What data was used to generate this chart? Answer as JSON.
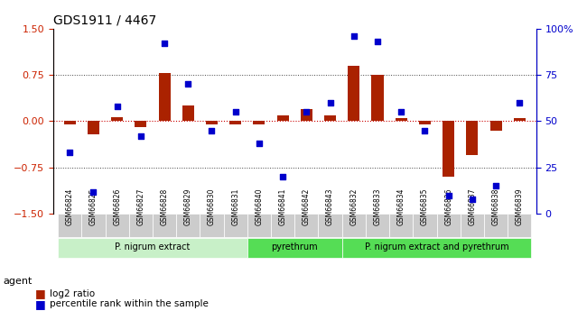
{
  "title": "GDS1911 / 4467",
  "samples": [
    "GSM66824",
    "GSM66825",
    "GSM66826",
    "GSM66827",
    "GSM66828",
    "GSM66829",
    "GSM66830",
    "GSM66831",
    "GSM66840",
    "GSM66841",
    "GSM66842",
    "GSM66843",
    "GSM66832",
    "GSM66833",
    "GSM66834",
    "GSM66835",
    "GSM66836",
    "GSM66837",
    "GSM66838",
    "GSM66839"
  ],
  "log2_ratio": [
    -0.05,
    -0.22,
    0.07,
    -0.1,
    0.78,
    0.25,
    -0.05,
    -0.05,
    -0.05,
    0.1,
    0.2,
    0.1,
    0.9,
    0.75,
    0.05,
    -0.05,
    -0.9,
    -0.55,
    -0.15,
    0.05
  ],
  "percentile": [
    33,
    12,
    58,
    42,
    92,
    70,
    45,
    55,
    38,
    20,
    55,
    60,
    96,
    93,
    55,
    45,
    10,
    8,
    15,
    60
  ],
  "groups": [
    {
      "label": "P. nigrum extract",
      "start": 0,
      "end": 8,
      "color": "#90ee90"
    },
    {
      "label": "pyrethrum",
      "start": 8,
      "end": 12,
      "color": "#44dd44"
    },
    {
      "label": "P. nigrum extract and pyrethrum",
      "start": 12,
      "end": 20,
      "color": "#44dd44"
    }
  ],
  "ylim_left": [
    -1.5,
    1.5
  ],
  "ylim_right": [
    0,
    100
  ],
  "bar_color": "#aa2200",
  "dot_color": "#0000cc",
  "hline_color": "#cc0000",
  "hline_style": "dotted",
  "gridline_color": "#444444",
  "gridline_style": "dotted",
  "ylabel_left": "",
  "ylabel_right": "",
  "yticks_left": [
    -1.5,
    -0.75,
    0.0,
    0.75,
    1.5
  ],
  "yticks_right": [
    0,
    25,
    50,
    75,
    100
  ],
  "legend_items": [
    "log2 ratio",
    "percentile rank within the sample"
  ],
  "agent_label": "agent",
  "background_color": "#ffffff",
  "plot_bg_color": "#ffffff"
}
